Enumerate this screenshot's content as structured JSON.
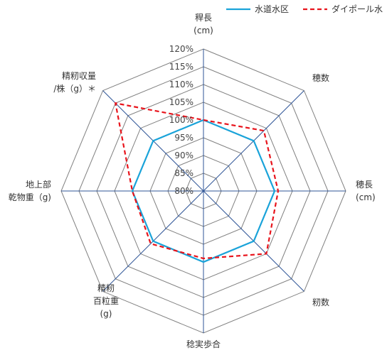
{
  "chart_data": {
    "type": "radar",
    "title": "",
    "axes": [
      [
        "稈長",
        "(cm)"
      ],
      [
        "穂数"
      ],
      [
        "穂長",
        "(cm)"
      ],
      [
        "籾数"
      ],
      [
        "稔実歩合"
      ],
      [
        "精籾",
        "百粒重",
        "(g)"
      ],
      [
        "地上部",
        "乾物重（g)"
      ],
      [
        "精籾収量",
        "/株（g）＊"
      ]
    ],
    "ticks": [
      "80%",
      "85%",
      "90%",
      "95%",
      "100%",
      "105%",
      "110%",
      "115%",
      "120%"
    ],
    "rmin": 80,
    "rmax": 120,
    "series": [
      {
        "name": "水道水区",
        "color": "#1aa3d9",
        "dash": "solid",
        "values": [
          100,
          100,
          100,
          100,
          100,
          100,
          100,
          100
        ]
      },
      {
        "name": "ダイポール水",
        "color": "#e8141c",
        "dash": "dashed",
        "values": [
          100,
          104,
          101,
          105,
          99,
          101,
          100,
          115
        ]
      }
    ],
    "legend_position": "top-right",
    "grid": true
  }
}
